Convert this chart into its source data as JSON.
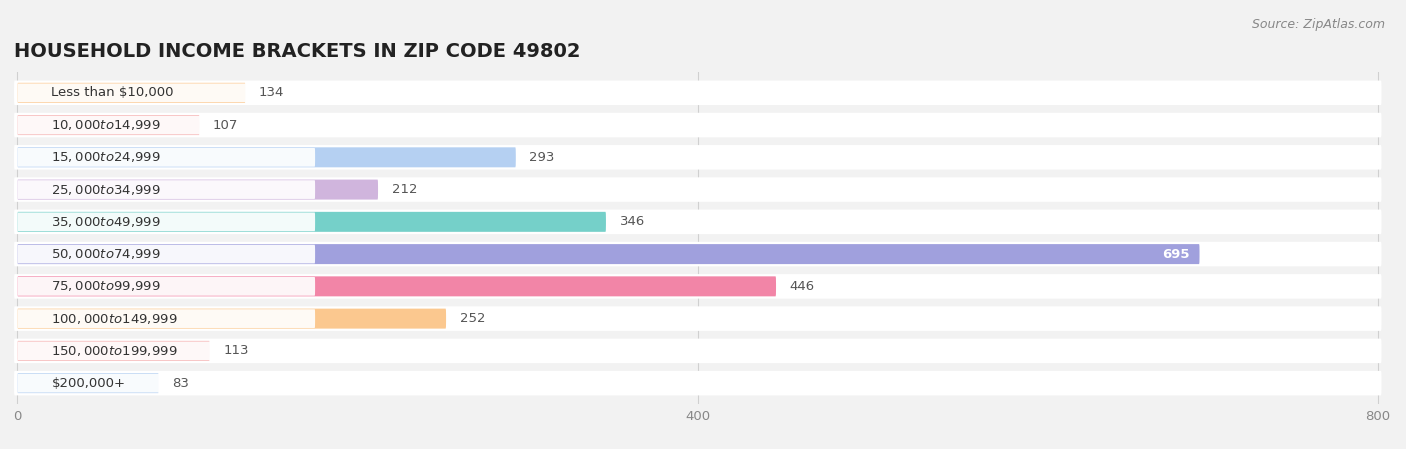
{
  "title": "HOUSEHOLD INCOME BRACKETS IN ZIP CODE 49802",
  "source": "Source: ZipAtlas.com",
  "categories": [
    "Less than $10,000",
    "$10,000 to $14,999",
    "$15,000 to $24,999",
    "$25,000 to $34,999",
    "$35,000 to $49,999",
    "$50,000 to $74,999",
    "$75,000 to $99,999",
    "$100,000 to $149,999",
    "$150,000 to $199,999",
    "$200,000+"
  ],
  "values": [
    134,
    107,
    293,
    212,
    346,
    695,
    446,
    252,
    113,
    83
  ],
  "bar_colors": [
    "#FBBF7C",
    "#F4A0A0",
    "#A8C8F0",
    "#C8A8D8",
    "#5DC8C0",
    "#9090D8",
    "#F07098",
    "#FBBF7C",
    "#F4A0A0",
    "#A8C8F0"
  ],
  "background_color": "#f2f2f2",
  "xlim": [
    0,
    800
  ],
  "xticks": [
    0,
    400,
    800
  ],
  "title_fontsize": 14,
  "label_fontsize": 9.5,
  "value_fontsize": 9.5,
  "source_fontsize": 9
}
